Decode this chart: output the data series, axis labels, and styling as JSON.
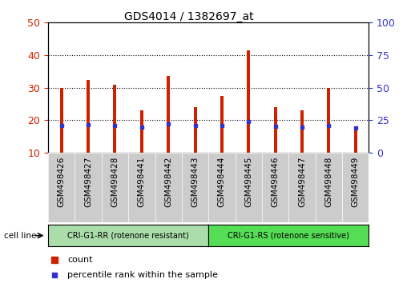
{
  "title": "GDS4014 / 1382697_at",
  "categories": [
    "GSM498426",
    "GSM498427",
    "GSM498428",
    "GSM498441",
    "GSM498442",
    "GSM498443",
    "GSM498444",
    "GSM498445",
    "GSM498446",
    "GSM498447",
    "GSM498448",
    "GSM498449"
  ],
  "counts": [
    30,
    32.5,
    31,
    23,
    33.5,
    24,
    27.5,
    41.5,
    24,
    23,
    30,
    17
  ],
  "percentile_ranks": [
    21,
    21.5,
    21,
    20,
    22,
    21,
    21,
    24,
    20.5,
    20,
    21,
    19
  ],
  "bar_color": "#cc2200",
  "percentile_color": "#3333cc",
  "ylim_left": [
    10,
    50
  ],
  "ylim_right": [
    0,
    100
  ],
  "yticks_left": [
    10,
    20,
    30,
    40,
    50
  ],
  "yticks_right": [
    0,
    25,
    50,
    75,
    100
  ],
  "grid_yticks": [
    20,
    30,
    40
  ],
  "group1_label": "CRI-G1-RR (rotenone resistant)",
  "group2_label": "CRI-G1-RS (rotenone sensitive)",
  "group1_color": "#aaddaa",
  "group2_color": "#55dd55",
  "group1_n": 6,
  "group2_n": 6,
  "cell_line_label": "cell line",
  "legend_count": "count",
  "legend_percentile": "percentile rank within the sample",
  "bar_width": 0.12,
  "tick_gray_bg": "#cccccc",
  "plot_bg": "#ffffff",
  "outer_bg": "#ffffff",
  "title_fontsize": 10,
  "axis_fontsize": 9,
  "label_fontsize": 7.5,
  "legend_fontsize": 8
}
